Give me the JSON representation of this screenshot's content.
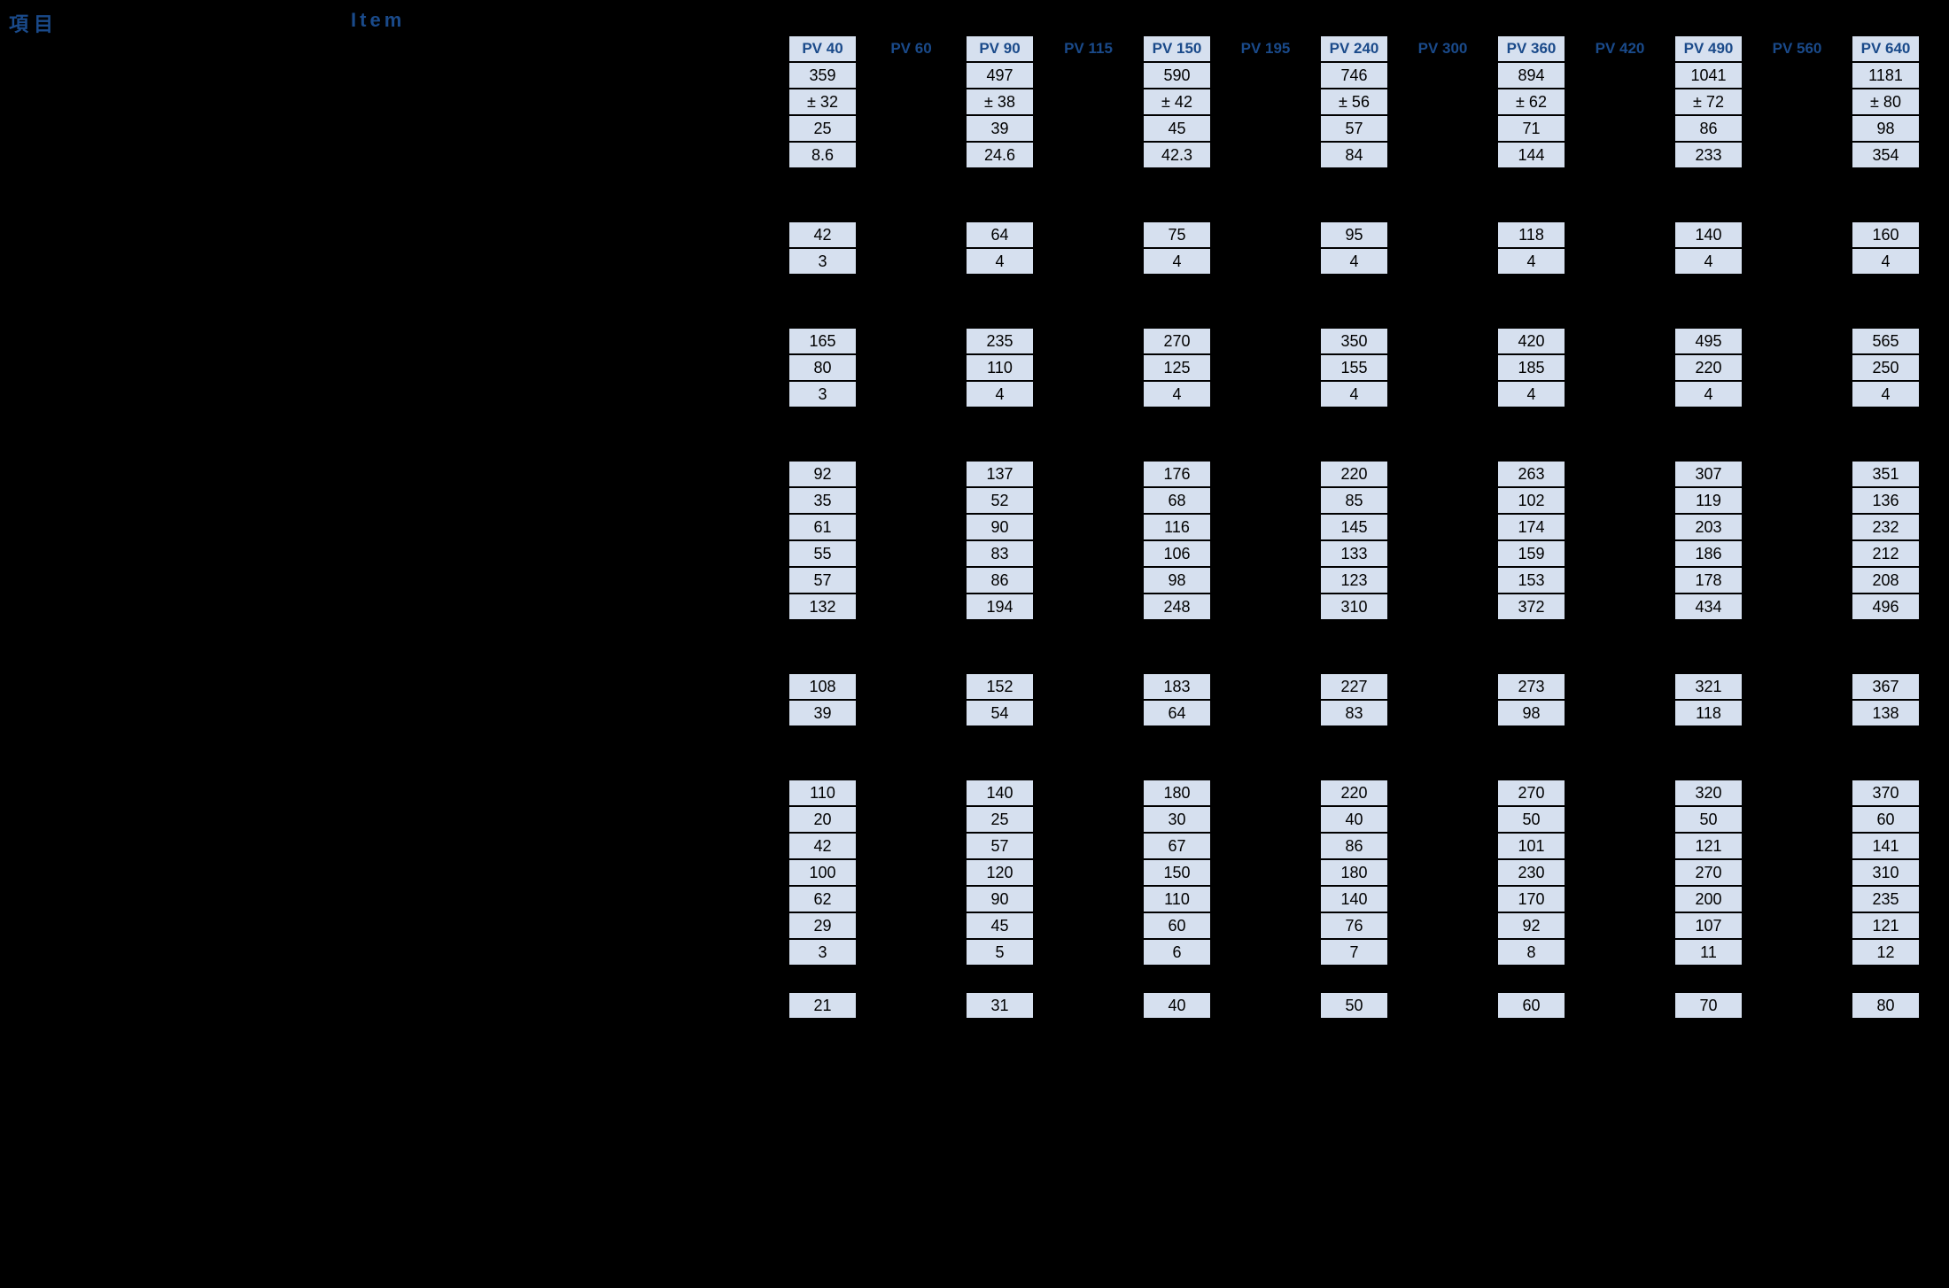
{
  "labels": {
    "left": "項目",
    "item": "Item"
  },
  "colors": {
    "header_text": "#1a4a8a",
    "cell_bg": "#d6e0ef",
    "cell_border": "#000000",
    "page_bg": "#000000",
    "cell_text": "#000000"
  },
  "columns_full": [
    "PV 40",
    "PV 60",
    "PV 90",
    "PV 115",
    "PV 150",
    "PV 195",
    "PV 240",
    "PV 300",
    "PV 360",
    "PV 420",
    "PV 490",
    "PV 560",
    "PV 640"
  ],
  "columns_data": [
    "PV 40",
    "PV 90",
    "PV 150",
    "PV 240",
    "PV 360",
    "PV 490",
    "PV 640"
  ],
  "columns_label_only": [
    "PV 60",
    "PV 115",
    "PV 195",
    "PV 300",
    "PV 420",
    "PV 560"
  ],
  "blocks": [
    {
      "rows": [
        [
          "359",
          "497",
          "590",
          "746",
          "894",
          "1041",
          "1181"
        ],
        [
          "± 32",
          "± 38",
          "± 42",
          "± 56",
          "± 62",
          "± 72",
          "± 80"
        ],
        [
          "25",
          "39",
          "45",
          "57",
          "71",
          "86",
          "98"
        ],
        [
          "8.6",
          "24.6",
          "42.3",
          "84",
          "144",
          "233",
          "354"
        ]
      ]
    },
    {
      "rows": [
        [
          "42",
          "64",
          "75",
          "95",
          "118",
          "140",
          "160"
        ],
        [
          "3",
          "4",
          "4",
          "4",
          "4",
          "4",
          "4"
        ]
      ]
    },
    {
      "rows": [
        [
          "165",
          "235",
          "270",
          "350",
          "420",
          "495",
          "565"
        ],
        [
          "80",
          "110",
          "125",
          "155",
          "185",
          "220",
          "250"
        ],
        [
          "3",
          "4",
          "4",
          "4",
          "4",
          "4",
          "4"
        ]
      ]
    },
    {
      "rows": [
        [
          "92",
          "137",
          "176",
          "220",
          "263",
          "307",
          "351"
        ],
        [
          "35",
          "52",
          "68",
          "85",
          "102",
          "119",
          "136"
        ],
        [
          "61",
          "90",
          "116",
          "145",
          "174",
          "203",
          "232"
        ],
        [
          "55",
          "83",
          "106",
          "133",
          "159",
          "186",
          "212"
        ],
        [
          "57",
          "86",
          "98",
          "123",
          "153",
          "178",
          "208"
        ],
        [
          "132",
          "194",
          "248",
          "310",
          "372",
          "434",
          "496"
        ]
      ]
    },
    {
      "rows": [
        [
          "108",
          "152",
          "183",
          "227",
          "273",
          "321",
          "367"
        ],
        [
          "39",
          "54",
          "64",
          "83",
          "98",
          "118",
          "138"
        ]
      ]
    },
    {
      "rows": [
        [
          "110",
          "140",
          "180",
          "220",
          "270",
          "320",
          "370"
        ],
        [
          "20",
          "25",
          "30",
          "40",
          "50",
          "50",
          "60"
        ],
        [
          "42",
          "57",
          "67",
          "86",
          "101",
          "121",
          "141"
        ],
        [
          "100",
          "120",
          "150",
          "180",
          "230",
          "270",
          "310"
        ],
        [
          "62",
          "90",
          "110",
          "140",
          "170",
          "200",
          "235"
        ],
        [
          "29",
          "45",
          "60",
          "76",
          "92",
          "107",
          "121"
        ],
        [
          "3",
          "5",
          "6",
          "7",
          "8",
          "11",
          "12"
        ]
      ]
    },
    {
      "rows": [
        [
          "21",
          "31",
          "40",
          "50",
          "60",
          "70",
          "80"
        ]
      ]
    }
  ]
}
